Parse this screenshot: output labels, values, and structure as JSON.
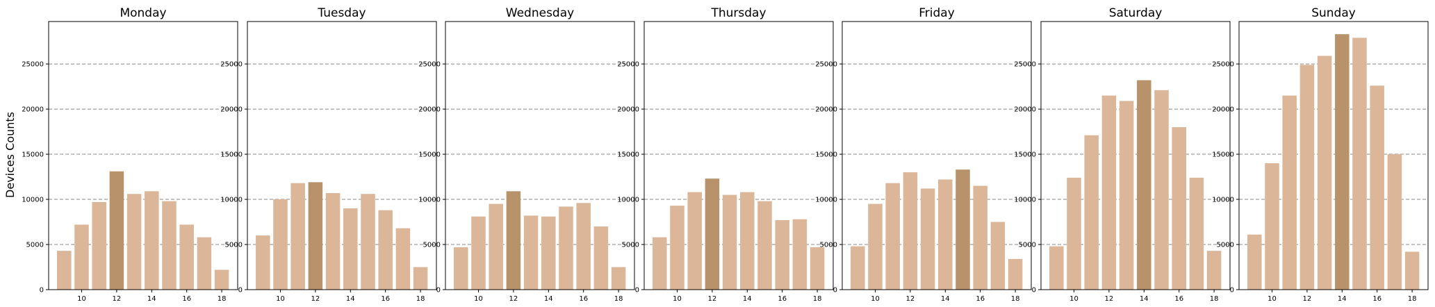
{
  "figure": {
    "ylabel": "Devices Counts"
  },
  "colors": {
    "bar": "#dbb698",
    "highlight": "#b8926a",
    "grid": "#888888",
    "frame": "#000000"
  },
  "chart_data": [
    {
      "type": "bar",
      "title": "Monday",
      "x": [
        9,
        10,
        11,
        12,
        13,
        14,
        15,
        16,
        17,
        18
      ],
      "values": [
        4300,
        7200,
        9700,
        13100,
        10600,
        10900,
        9800,
        7200,
        5800,
        2200
      ],
      "highlight_index": 3,
      "xticks": [
        10,
        12,
        14,
        16,
        18
      ],
      "yticks": [
        0,
        5000,
        10000,
        15000,
        20000,
        25000
      ],
      "ylim": [
        0,
        29700
      ],
      "grid": "y-dashed"
    },
    {
      "type": "bar",
      "title": "Tuesday",
      "x": [
        9,
        10,
        11,
        12,
        13,
        14,
        15,
        16,
        17,
        18
      ],
      "values": [
        6000,
        10000,
        11800,
        11900,
        10700,
        9000,
        10600,
        8800,
        6800,
        2500
      ],
      "highlight_index": 3,
      "xticks": [
        10,
        12,
        14,
        16,
        18
      ],
      "yticks": [
        0,
        5000,
        10000,
        15000,
        20000,
        25000
      ],
      "ylim": [
        0,
        29700
      ],
      "grid": "y-dashed"
    },
    {
      "type": "bar",
      "title": "Wednesday",
      "x": [
        9,
        10,
        11,
        12,
        13,
        14,
        15,
        16,
        17,
        18
      ],
      "values": [
        4700,
        8100,
        9500,
        10900,
        8200,
        8100,
        9200,
        9600,
        7000,
        2500
      ],
      "highlight_index": 3,
      "xticks": [
        10,
        12,
        14,
        16,
        18
      ],
      "yticks": [
        0,
        5000,
        10000,
        15000,
        20000,
        25000
      ],
      "ylim": [
        0,
        29700
      ],
      "grid": "y-dashed"
    },
    {
      "type": "bar",
      "title": "Thursday",
      "x": [
        9,
        10,
        11,
        12,
        13,
        14,
        15,
        16,
        17,
        18
      ],
      "values": [
        5800,
        9300,
        10800,
        12300,
        10500,
        10800,
        9800,
        7700,
        7800,
        4700
      ],
      "highlight_index": 3,
      "xticks": [
        10,
        12,
        14,
        16,
        18
      ],
      "yticks": [
        0,
        5000,
        10000,
        15000,
        20000,
        25000
      ],
      "ylim": [
        0,
        29700
      ],
      "grid": "y-dashed"
    },
    {
      "type": "bar",
      "title": "Friday",
      "x": [
        9,
        10,
        11,
        12,
        13,
        14,
        15,
        16,
        17,
        18
      ],
      "values": [
        4800,
        9500,
        11800,
        13000,
        11200,
        12200,
        13300,
        11500,
        7500,
        3400
      ],
      "highlight_index": 6,
      "xticks": [
        10,
        12,
        14,
        16,
        18
      ],
      "yticks": [
        0,
        5000,
        10000,
        15000,
        20000,
        25000
      ],
      "ylim": [
        0,
        29700
      ],
      "grid": "y-dashed"
    },
    {
      "type": "bar",
      "title": "Saturday",
      "x": [
        9,
        10,
        11,
        12,
        13,
        14,
        15,
        16,
        17,
        18
      ],
      "values": [
        4800,
        12400,
        17100,
        21500,
        20900,
        23200,
        22100,
        18000,
        12400,
        4300
      ],
      "highlight_index": 5,
      "xticks": [
        10,
        12,
        14,
        16,
        18
      ],
      "yticks": [
        0,
        5000,
        10000,
        15000,
        20000,
        25000
      ],
      "ylim": [
        0,
        29700
      ],
      "grid": "y-dashed"
    },
    {
      "type": "bar",
      "title": "Sunday",
      "x": [
        9,
        10,
        11,
        12,
        13,
        14,
        15,
        16,
        17,
        18
      ],
      "values": [
        6100,
        14000,
        21500,
        24900,
        25900,
        28300,
        27900,
        22600,
        15000,
        4200
      ],
      "highlight_index": 5,
      "xticks": [
        10,
        12,
        14,
        16,
        18
      ],
      "yticks": [
        0,
        5000,
        10000,
        15000,
        20000,
        25000
      ],
      "ylim": [
        0,
        29700
      ],
      "grid": "y-dashed"
    }
  ]
}
